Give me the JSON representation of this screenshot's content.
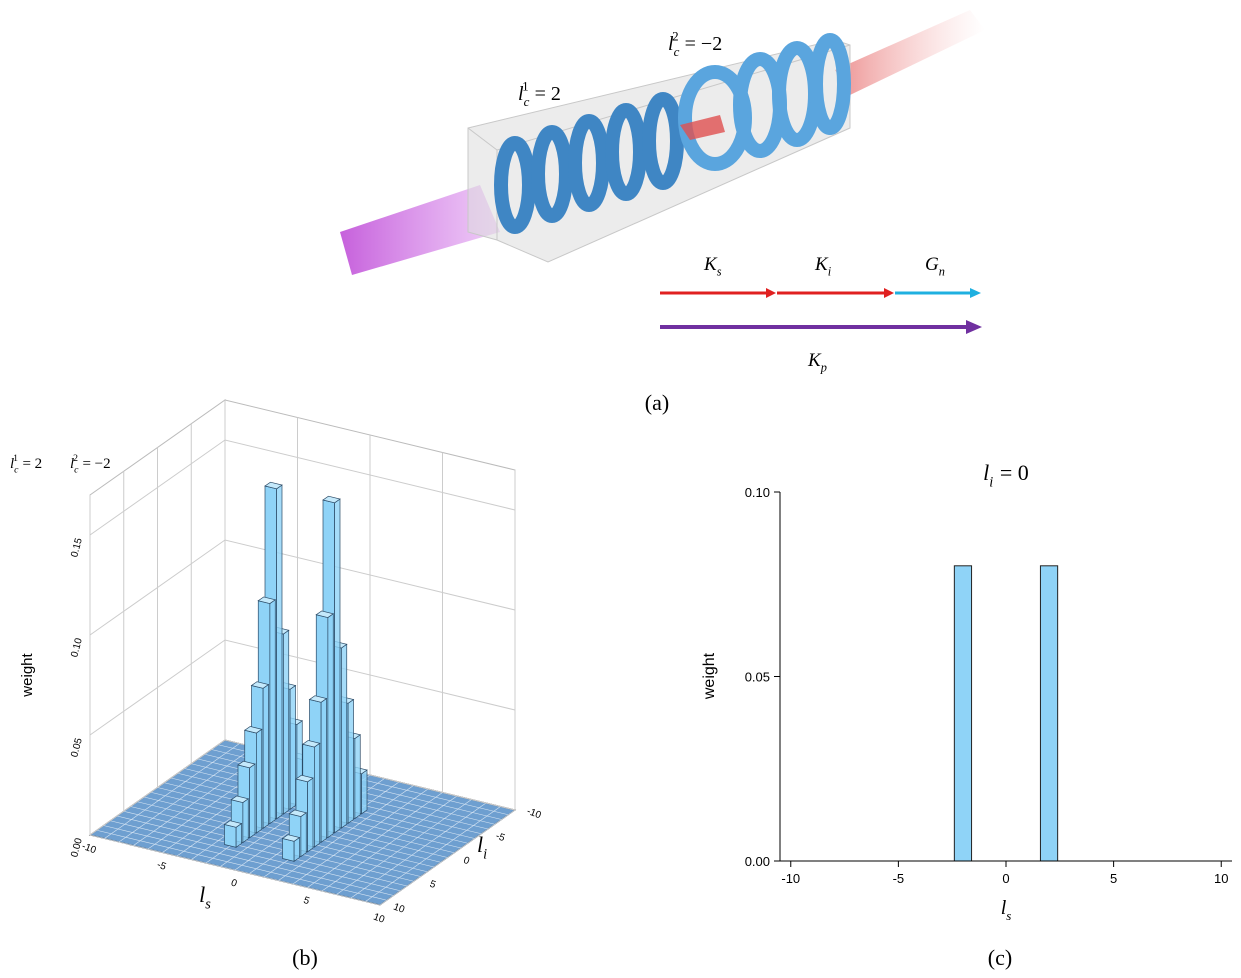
{
  "panel_a": {
    "labels": {
      "lc1": {
        "base": "l",
        "sub": "c",
        "sup": "1",
        "rest": "= 2"
      },
      "lc2": {
        "base": "l",
        "sub": "c",
        "sup": "2",
        "rest": "= −2"
      },
      "Ks": {
        "base": "K",
        "sub": "s"
      },
      "Ki": {
        "base": "K",
        "sub": "i"
      },
      "Gn": {
        "base": "G",
        "sub": "n"
      },
      "Kp": {
        "base": "K",
        "sub": "p"
      }
    },
    "caption": "(a)"
  },
  "chart_data": [
    {
      "type": "bar3d",
      "annotation": [
        {
          "base": "l",
          "sub": "c",
          "sup": "1",
          "rest": "= 2"
        },
        {
          "base": "l",
          "sub": "c",
          "sup": "2",
          "rest": "= −2"
        }
      ],
      "x_label": {
        "base": "l",
        "sub": "s"
      },
      "y_label": {
        "base": "l",
        "sub": "i"
      },
      "z_label": "weight",
      "x": [
        -2,
        -2,
        -2,
        -2,
        -2,
        -2,
        -2,
        -2,
        -2,
        -2,
        -2,
        2,
        2,
        2,
        2,
        2,
        2,
        2,
        2,
        2,
        2,
        2
      ],
      "y": [
        -4,
        -3,
        -2,
        -1,
        0,
        1,
        2,
        3,
        4,
        5,
        6,
        -4,
        -3,
        -2,
        -1,
        0,
        1,
        2,
        3,
        4,
        5,
        6
      ],
      "z": [
        0.02,
        0.04,
        0.06,
        0.09,
        0.165,
        0.11,
        0.07,
        0.05,
        0.035,
        0.02,
        0.01,
        0.02,
        0.04,
        0.06,
        0.09,
        0.165,
        0.11,
        0.07,
        0.05,
        0.035,
        0.02,
        0.01
      ],
      "color": "#8fd3f7",
      "floor_color": "#6e9fd0",
      "xlim": [
        -10,
        10
      ],
      "ylim": [
        -10,
        10
      ],
      "zlim": [
        0,
        0.17
      ],
      "xticks": [
        -10,
        -5,
        0,
        5,
        10
      ],
      "yticks": [
        -10,
        -5,
        0,
        5,
        10
      ],
      "zticks": [
        {
          "value": 0,
          "label": "0.00"
        },
        {
          "value": 0.05,
          "label": "0.05"
        },
        {
          "value": 0.1,
          "label": "0.10"
        },
        {
          "value": 0.15,
          "label": "0.15"
        }
      ],
      "caption": "(b)"
    },
    {
      "type": "bar",
      "title": {
        "base": "l",
        "sub": "i",
        "rest": "= 0"
      },
      "x_label": {
        "base": "l",
        "sub": "s"
      },
      "y_label": "weight",
      "x": [
        -2,
        2
      ],
      "values": [
        0.08,
        0.08
      ],
      "color": "#8fd3f7",
      "xlim": [
        -10.5,
        10.5
      ],
      "ylim": [
        0,
        0.1
      ],
      "xticks": [
        -10,
        -5,
        0,
        5,
        10
      ],
      "yticks": [
        {
          "value": 0,
          "label": "0.00"
        },
        {
          "value": 0.05,
          "label": "0.05"
        },
        {
          "value": 0.1,
          "label": "0.10"
        }
      ],
      "caption": "(c)"
    }
  ]
}
